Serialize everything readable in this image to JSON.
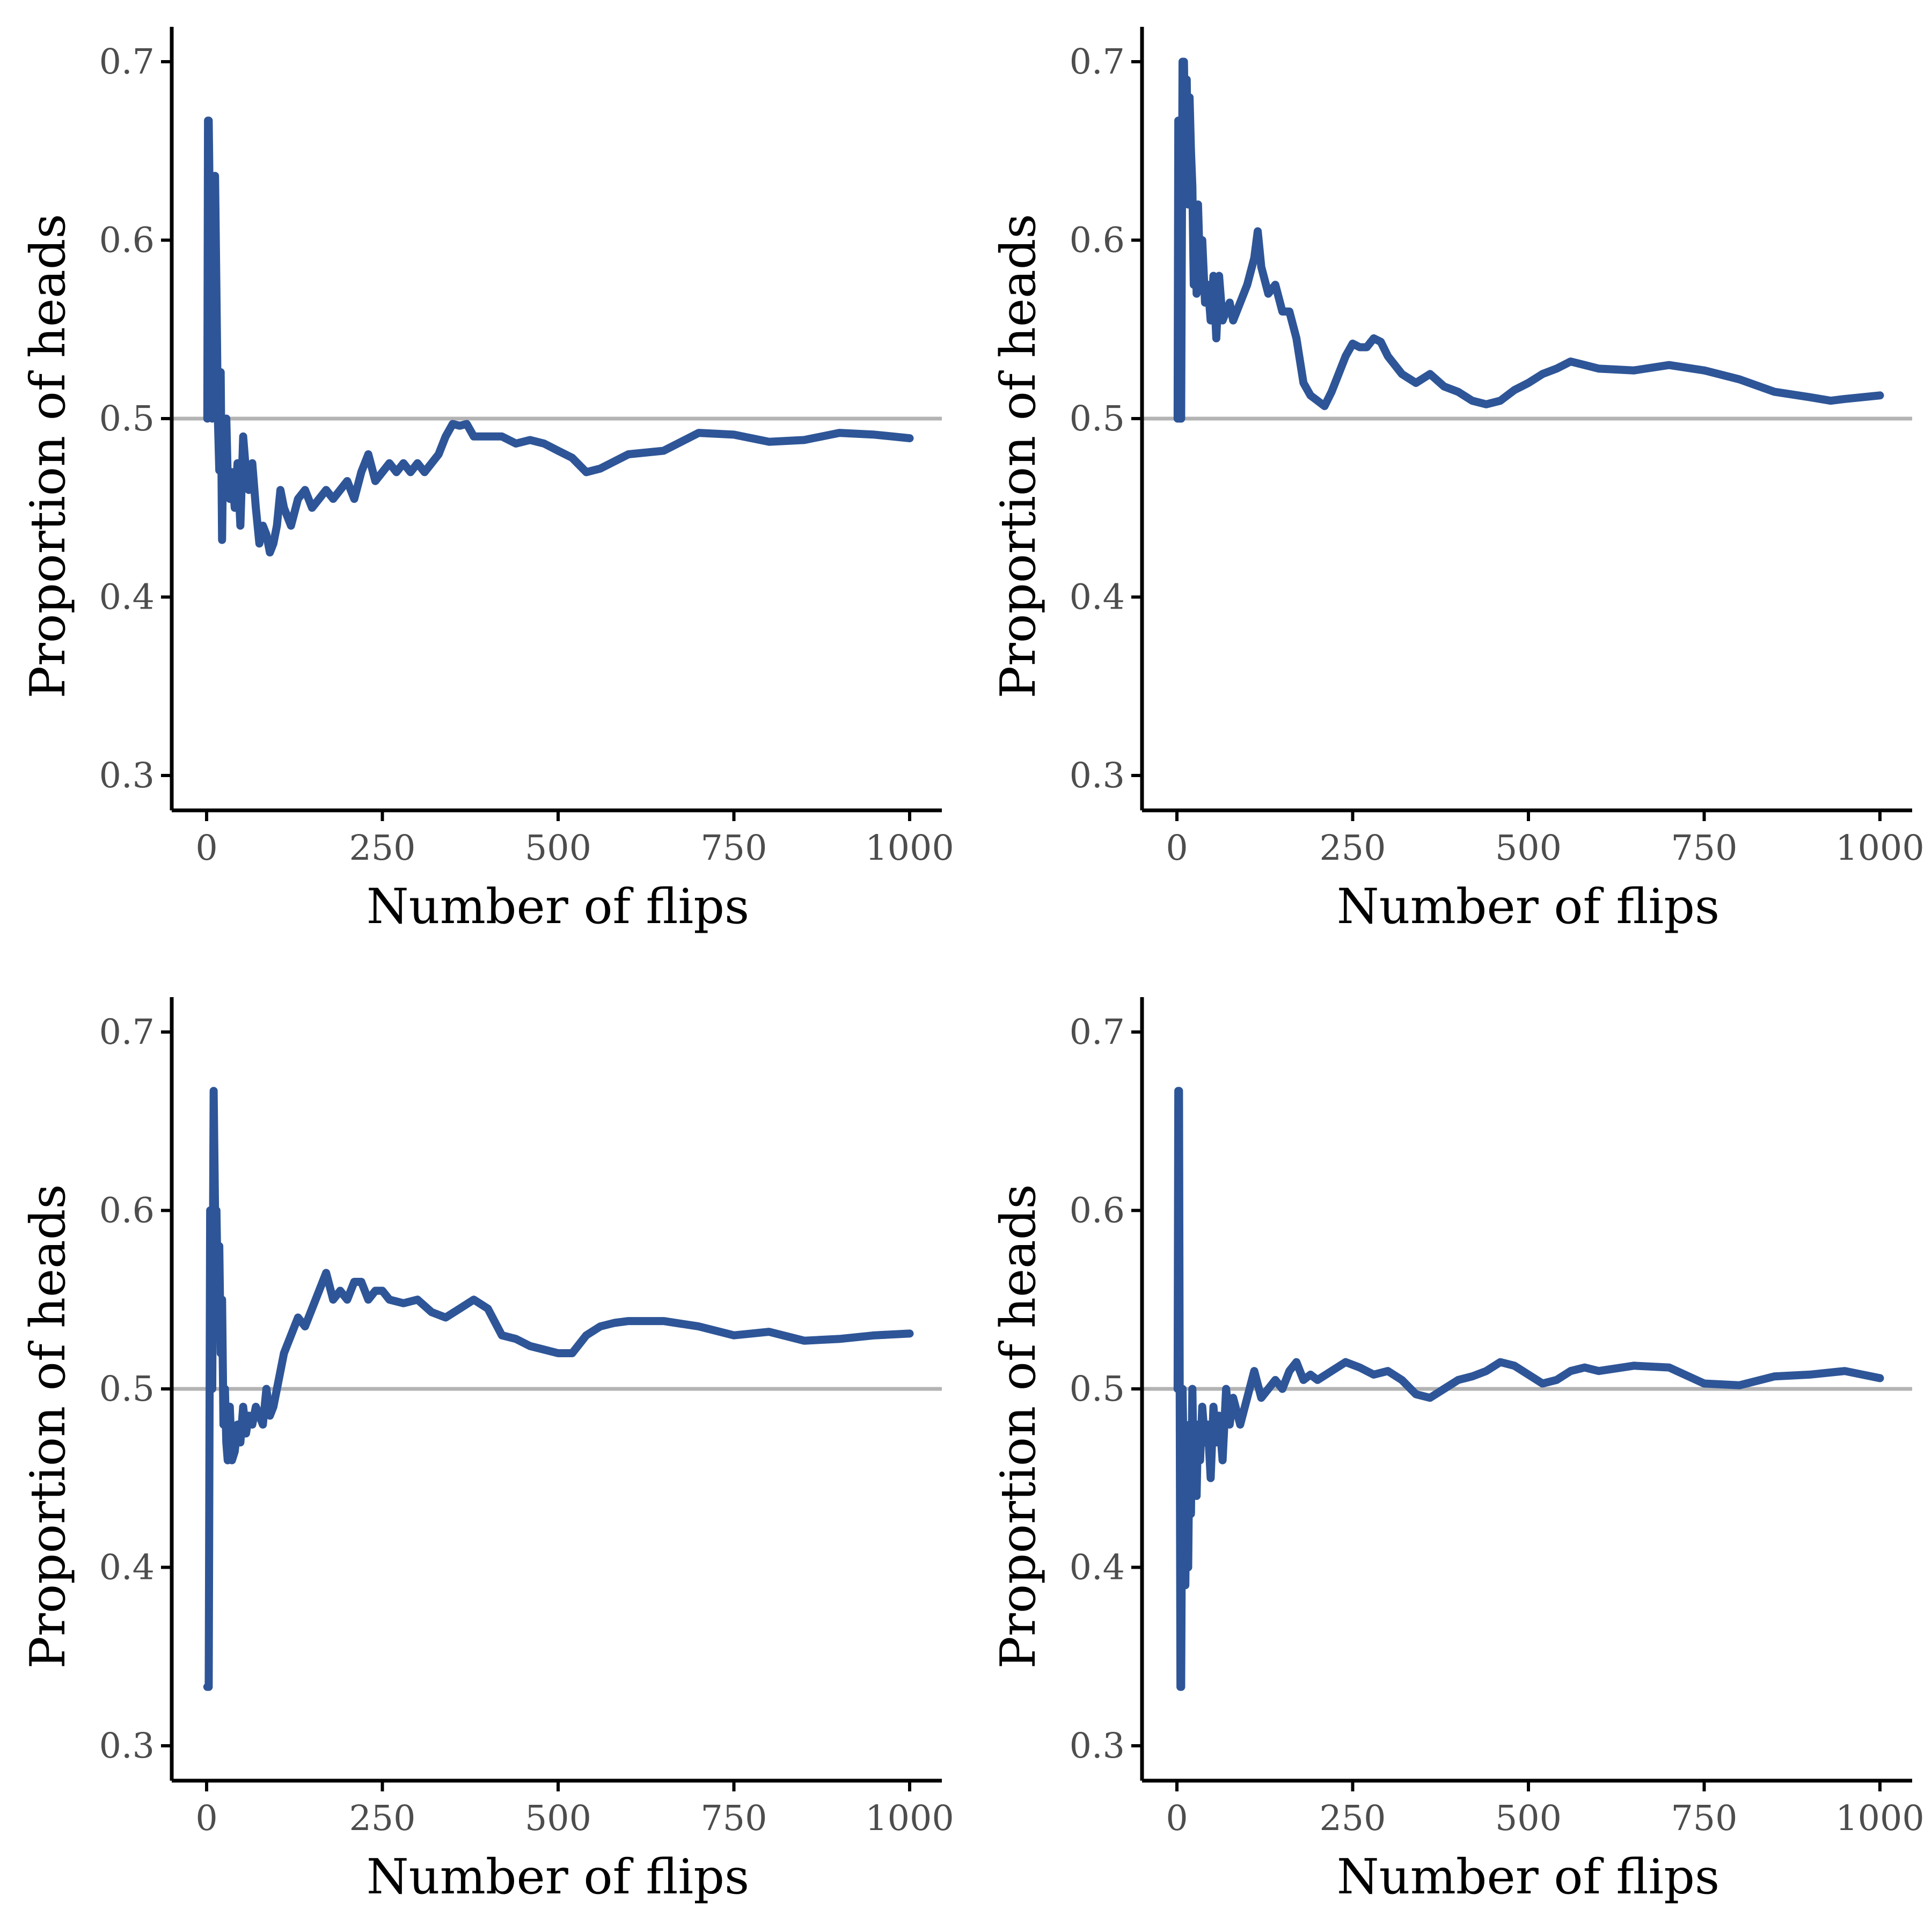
{
  "colors": {
    "series": "#2e5597",
    "reference_line": "#b3b3b3",
    "axis": "#000000",
    "tick_label": "#4d4d4d"
  },
  "chart_data": [
    {
      "type": "line",
      "xlabel": "Number of flips",
      "ylabel": "Proportion of heads",
      "xlim": [
        0,
        1000
      ],
      "ylim": [
        0.3,
        0.7
      ],
      "x_ticks": [
        "0",
        "250",
        "500",
        "750",
        "1000"
      ],
      "y_ticks": [
        "0.3",
        "0.4",
        "0.5",
        "0.6",
        "0.7"
      ],
      "reference_y": 0.5,
      "grid": false,
      "series": [
        {
          "x": [
            1,
            2,
            3,
            5,
            8,
            10,
            12,
            14,
            16,
            18,
            20,
            22,
            24,
            26,
            28,
            30,
            33,
            36,
            40,
            44,
            48,
            52,
            56,
            60,
            65,
            70,
            75,
            80,
            85,
            90,
            95,
            100,
            105,
            110,
            120,
            130,
            140,
            150,
            160,
            170,
            180,
            190,
            200,
            210,
            220,
            230,
            240,
            250,
            260,
            270,
            280,
            290,
            300,
            310,
            320,
            330,
            340,
            350,
            360,
            370,
            380,
            400,
            420,
            440,
            460,
            480,
            500,
            520,
            540,
            560,
            580,
            600,
            650,
            700,
            750,
            800,
            850,
            900,
            950,
            1000
          ],
          "y": [
            0.5,
            0.667,
            0.667,
            0.6,
            0.5,
            0.6,
            0.636,
            0.571,
            0.5,
            0.471,
            0.526,
            0.432,
            0.5,
            0.48,
            0.5,
            0.467,
            0.455,
            0.47,
            0.45,
            0.475,
            0.44,
            0.49,
            0.47,
            0.46,
            0.475,
            0.45,
            0.43,
            0.44,
            0.435,
            0.425,
            0.43,
            0.44,
            0.46,
            0.45,
            0.44,
            0.455,
            0.46,
            0.45,
            0.455,
            0.46,
            0.455,
            0.46,
            0.465,
            0.455,
            0.47,
            0.48,
            0.465,
            0.47,
            0.475,
            0.47,
            0.475,
            0.47,
            0.475,
            0.47,
            0.475,
            0.48,
            0.49,
            0.497,
            0.496,
            0.497,
            0.49,
            0.49,
            0.49,
            0.486,
            0.488,
            0.486,
            0.482,
            0.478,
            0.47,
            0.472,
            0.476,
            0.48,
            0.482,
            0.492,
            0.491,
            0.487,
            0.488,
            0.492,
            0.491,
            0.489
          ]
        }
      ]
    },
    {
      "type": "line",
      "xlabel": "Number of flips",
      "ylabel": "Proportion of heads",
      "xlim": [
        0,
        1000
      ],
      "ylim": [
        0.3,
        0.7
      ],
      "x_ticks": [
        "0",
        "250",
        "500",
        "750",
        "1000"
      ],
      "y_ticks": [
        "0.3",
        "0.4",
        "0.5",
        "0.6",
        "0.7"
      ],
      "reference_y": 0.5,
      "grid": false,
      "series": [
        {
          "x": [
            1,
            2,
            3,
            4,
            5,
            6,
            8,
            10,
            12,
            14,
            16,
            18,
            20,
            22,
            24,
            26,
            28,
            30,
            33,
            36,
            40,
            44,
            48,
            52,
            56,
            60,
            65,
            70,
            75,
            80,
            90,
            100,
            110,
            115,
            120,
            130,
            140,
            150,
            160,
            170,
            180,
            190,
            200,
            210,
            220,
            230,
            240,
            250,
            260,
            270,
            280,
            290,
            300,
            320,
            340,
            360,
            380,
            400,
            420,
            440,
            460,
            480,
            500,
            520,
            540,
            560,
            580,
            600,
            650,
            700,
            750,
            800,
            850,
            900,
            930,
            950,
            1000
          ],
          "y": [
            0.5,
            0.667,
            0.5,
            0.5,
            0.5,
            0.5,
            0.7,
            0.7,
            0.65,
            0.69,
            0.62,
            0.68,
            0.65,
            0.63,
            0.575,
            0.62,
            0.57,
            0.62,
            0.58,
            0.6,
            0.565,
            0.575,
            0.555,
            0.58,
            0.545,
            0.58,
            0.555,
            0.56,
            0.565,
            0.555,
            0.565,
            0.575,
            0.59,
            0.605,
            0.585,
            0.57,
            0.575,
            0.56,
            0.56,
            0.545,
            0.52,
            0.513,
            0.51,
            0.507,
            0.515,
            0.525,
            0.535,
            0.542,
            0.54,
            0.54,
            0.545,
            0.543,
            0.535,
            0.525,
            0.52,
            0.525,
            0.518,
            0.515,
            0.51,
            0.508,
            0.51,
            0.516,
            0.52,
            0.525,
            0.528,
            0.532,
            0.53,
            0.528,
            0.527,
            0.53,
            0.527,
            0.522,
            0.515,
            0.512,
            0.51,
            0.511,
            0.513
          ]
        }
      ]
    },
    {
      "type": "line",
      "xlabel": "Number of flips",
      "ylabel": "Proportion of heads",
      "xlim": [
        0,
        1000
      ],
      "ylim": [
        0.3,
        0.7
      ],
      "x_ticks": [
        "0",
        "250",
        "500",
        "750",
        "1000"
      ],
      "y_ticks": [
        "0.3",
        "0.4",
        "0.5",
        "0.6",
        "0.7"
      ],
      "reference_y": 0.5,
      "grid": false,
      "series": [
        {
          "x": [
            1,
            3,
            5,
            8,
            10,
            12,
            14,
            16,
            18,
            20,
            22,
            24,
            26,
            28,
            30,
            33,
            36,
            40,
            44,
            48,
            52,
            56,
            60,
            65,
            70,
            75,
            80,
            85,
            90,
            95,
            100,
            110,
            120,
            130,
            140,
            150,
            160,
            170,
            180,
            190,
            200,
            210,
            220,
            230,
            240,
            250,
            260,
            280,
            300,
            320,
            340,
            360,
            380,
            400,
            420,
            440,
            460,
            480,
            500,
            520,
            540,
            560,
            580,
            600,
            650,
            700,
            750,
            800,
            850,
            900,
            950,
            1000
          ],
          "y": [
            0.333,
            0.333,
            0.6,
            0.5,
            0.667,
            0.6,
            0.6,
            0.55,
            0.58,
            0.52,
            0.55,
            0.48,
            0.5,
            0.47,
            0.46,
            0.49,
            0.46,
            0.465,
            0.48,
            0.47,
            0.49,
            0.475,
            0.485,
            0.48,
            0.49,
            0.485,
            0.48,
            0.5,
            0.485,
            0.49,
            0.5,
            0.52,
            0.53,
            0.54,
            0.535,
            0.545,
            0.555,
            0.565,
            0.55,
            0.555,
            0.55,
            0.56,
            0.56,
            0.55,
            0.555,
            0.555,
            0.55,
            0.548,
            0.55,
            0.543,
            0.54,
            0.545,
            0.55,
            0.545,
            0.53,
            0.528,
            0.524,
            0.522,
            0.52,
            0.52,
            0.53,
            0.535,
            0.537,
            0.538,
            0.538,
            0.535,
            0.53,
            0.532,
            0.527,
            0.528,
            0.53,
            0.531
          ]
        }
      ]
    },
    {
      "type": "line",
      "xlabel": "Number of flips",
      "ylabel": "Proportion of heads",
      "xlim": [
        0,
        1000
      ],
      "ylim": [
        0.3,
        0.7
      ],
      "x_ticks": [
        "0",
        "250",
        "500",
        "750",
        "1000"
      ],
      "y_ticks": [
        "0.3",
        "0.4",
        "0.5",
        "0.6",
        "0.7"
      ],
      "reference_y": 0.5,
      "grid": false,
      "series": [
        {
          "x": [
            1,
            2,
            3,
            4,
            5,
            6,
            8,
            10,
            12,
            14,
            16,
            18,
            20,
            22,
            24,
            26,
            28,
            30,
            33,
            36,
            40,
            44,
            48,
            52,
            56,
            60,
            65,
            70,
            75,
            80,
            90,
            100,
            110,
            120,
            130,
            140,
            150,
            160,
            170,
            180,
            190,
            200,
            220,
            240,
            260,
            280,
            300,
            320,
            340,
            360,
            380,
            400,
            420,
            440,
            460,
            480,
            500,
            520,
            540,
            560,
            580,
            600,
            650,
            700,
            750,
            800,
            850,
            900,
            950,
            1000
          ],
          "y": [
            0.5,
            0.667,
            0.667,
            0.5,
            0.333,
            0.333,
            0.5,
            0.45,
            0.39,
            0.46,
            0.4,
            0.48,
            0.43,
            0.5,
            0.45,
            0.47,
            0.44,
            0.48,
            0.46,
            0.49,
            0.47,
            0.48,
            0.45,
            0.49,
            0.47,
            0.485,
            0.46,
            0.5,
            0.48,
            0.495,
            0.48,
            0.495,
            0.51,
            0.495,
            0.5,
            0.505,
            0.5,
            0.51,
            0.515,
            0.505,
            0.508,
            0.505,
            0.51,
            0.515,
            0.512,
            0.508,
            0.51,
            0.505,
            0.497,
            0.495,
            0.5,
            0.505,
            0.507,
            0.51,
            0.515,
            0.513,
            0.508,
            0.503,
            0.505,
            0.51,
            0.512,
            0.51,
            0.513,
            0.512,
            0.503,
            0.502,
            0.507,
            0.508,
            0.51,
            0.506
          ]
        }
      ]
    }
  ]
}
